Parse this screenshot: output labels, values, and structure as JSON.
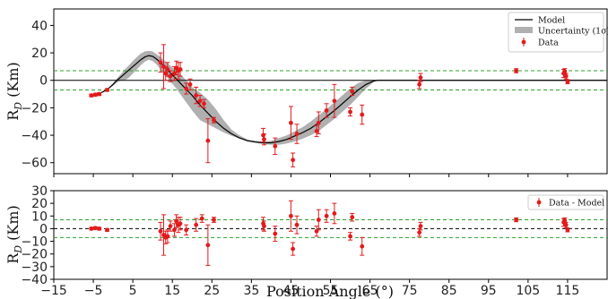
{
  "chart_data": [
    {
      "type": "line",
      "panel": "top",
      "ylabel": "R",
      "ylabel_sub": "D",
      "ylabel_unit": " (Km)",
      "xlim": [
        -15,
        125
      ],
      "ylim": [
        -68,
        52
      ],
      "yticks": [
        40,
        20,
        0,
        -20,
        -40,
        -60
      ],
      "reference_lines": [
        {
          "y": 0,
          "style": "solid",
          "color": "#000000"
        },
        {
          "y": 7,
          "style": "dashed",
          "color": "#2ca02c"
        },
        {
          "y": -7,
          "style": "dashed",
          "color": "#2ca02c"
        }
      ],
      "legend": {
        "placement": "top-right",
        "entries": [
          {
            "label": "Model",
            "kind": "line",
            "color": "#000000"
          },
          {
            "label": "Uncertainty (1σ)",
            "kind": "band",
            "color": "#b0b0b0"
          },
          {
            "label": "Data",
            "kind": "errorbar",
            "color": "#e31a1c"
          }
        ]
      },
      "model": {
        "x": [
          -6,
          -5,
          -4,
          -3,
          -2,
          -1,
          0,
          1,
          2,
          3,
          4,
          5,
          6,
          7,
          8,
          9,
          10,
          11,
          12,
          13,
          14,
          15,
          16,
          17,
          18,
          19,
          20,
          22,
          24,
          26,
          28,
          30,
          32,
          34,
          36,
          38,
          40,
          42,
          44,
          46,
          48,
          50,
          52,
          54,
          56,
          58,
          60,
          62,
          64,
          66,
          67,
          68,
          70,
          125
        ],
        "y": [
          -11,
          -10.8,
          -10,
          -9,
          -7.5,
          -5.5,
          -3,
          0,
          2.5,
          5,
          7.5,
          10,
          12.5,
          15,
          17,
          18,
          17.5,
          15.5,
          13,
          10,
          7,
          4,
          1,
          -2,
          -5,
          -8,
          -11,
          -18,
          -24,
          -30,
          -35,
          -39,
          -42,
          -44,
          -45,
          -45.5,
          -45.5,
          -44.5,
          -43,
          -40.5,
          -38,
          -35,
          -31,
          -26.5,
          -22,
          -17,
          -12,
          -7,
          -3,
          -0.5,
          0,
          0,
          0,
          0
        ],
        "band_lower": [
          -12,
          -11.5,
          -10.5,
          -9.5,
          -8,
          -6,
          -4,
          -1.5,
          0,
          0,
          2,
          5,
          8,
          11,
          13.5,
          15,
          14,
          11.5,
          8,
          4.5,
          1,
          -2.5,
          -6,
          -10,
          -14,
          -18,
          -22,
          -29,
          -32,
          -35,
          -38,
          -40.5,
          -42.5,
          -44.5,
          -45.5,
          -46.5,
          -47,
          -47,
          -46,
          -44.5,
          -42.5,
          -40,
          -37,
          -32.5,
          -28,
          -23,
          -18,
          -12,
          -6,
          -1,
          0,
          0,
          0,
          0
        ],
        "band_upper": [
          -10,
          -10,
          -9.5,
          -8.5,
          -7,
          -5,
          -2,
          1.5,
          4.5,
          8,
          11,
          14,
          17,
          19.5,
          21,
          21.5,
          21,
          19,
          17,
          14.5,
          12,
          9.5,
          7,
          4.5,
          1.5,
          -1.5,
          -5,
          -9,
          -14,
          -21,
          -29,
          -36,
          -40,
          -43,
          -44,
          -44.5,
          -44,
          -42,
          -40,
          -37,
          -34,
          -30,
          -25.5,
          -21,
          -16,
          -11,
          -6,
          -2,
          0,
          0,
          0,
          0,
          0,
          0
        ]
      },
      "data_points": [
        {
          "x": -5.5,
          "y": -11,
          "err": 1
        },
        {
          "x": -4.5,
          "y": -10.5,
          "err": 1
        },
        {
          "x": -3.5,
          "y": -10,
          "err": 1
        },
        {
          "x": -1.5,
          "y": -7,
          "err": 1
        },
        {
          "x": 12,
          "y": 13,
          "err": 7
        },
        {
          "x": 12.8,
          "y": 10,
          "err": 16
        },
        {
          "x": 13.3,
          "y": 5,
          "err": 5
        },
        {
          "x": 13.8,
          "y": 8,
          "err": 5
        },
        {
          "x": 14.5,
          "y": 3,
          "err": 4
        },
        {
          "x": 15.5,
          "y": 5,
          "err": 5
        },
        {
          "x": 16,
          "y": 9,
          "err": 5
        },
        {
          "x": 16.5,
          "y": 7,
          "err": 6
        },
        {
          "x": 17,
          "y": 8,
          "err": 5
        },
        {
          "x": 18.5,
          "y": -6,
          "err": 4
        },
        {
          "x": 19.5,
          "y": -3,
          "err": 4
        },
        {
          "x": 21,
          "y": -11,
          "err": 6
        },
        {
          "x": 22,
          "y": -15,
          "err": 4
        },
        {
          "x": 23,
          "y": -17,
          "err": 3
        },
        {
          "x": 24,
          "y": -44,
          "err": 16
        },
        {
          "x": 25.5,
          "y": -29,
          "err": 2
        },
        {
          "x": 38,
          "y": -40,
          "err": 5
        },
        {
          "x": 38.2,
          "y": -43,
          "err": 4
        },
        {
          "x": 41,
          "y": -48,
          "err": 6
        },
        {
          "x": 45,
          "y": -31,
          "err": 12
        },
        {
          "x": 45.5,
          "y": -58,
          "err": 5
        },
        {
          "x": 46.5,
          "y": -39,
          "err": 7
        },
        {
          "x": 51.5,
          "y": -37,
          "err": 4
        },
        {
          "x": 52,
          "y": -31,
          "err": 8
        },
        {
          "x": 54,
          "y": -22,
          "err": 5
        },
        {
          "x": 56,
          "y": -15,
          "err": 12
        },
        {
          "x": 60,
          "y": -23,
          "err": 3
        },
        {
          "x": 60.5,
          "y": -8,
          "err": 3
        },
        {
          "x": 63,
          "y": -25,
          "err": 7
        },
        {
          "x": 77.5,
          "y": -3,
          "err": 3
        },
        {
          "x": 77.8,
          "y": 2,
          "err": 3
        },
        {
          "x": 102,
          "y": 7,
          "err": 1.5
        },
        {
          "x": 114,
          "y": 5,
          "err": 3
        },
        {
          "x": 114.3,
          "y": 6.5,
          "err": 2
        },
        {
          "x": 114.6,
          "y": 3,
          "err": 2
        },
        {
          "x": 115,
          "y": -1,
          "err": 1.5
        }
      ]
    },
    {
      "type": "scatter",
      "panel": "bottom",
      "xlabel": "Position Angle (°)",
      "ylabel": "R",
      "ylabel_sub": "D",
      "ylabel_unit": " (Km)",
      "xlim": [
        -15,
        125
      ],
      "ylim": [
        -40,
        30
      ],
      "yticks": [
        30,
        20,
        10,
        0,
        -10,
        -20,
        -30,
        -40
      ],
      "ytick_labels": [
        "30",
        "20",
        "10",
        "0",
        "−10",
        "−20",
        "−30",
        "−40"
      ],
      "xticks": [
        -15,
        -5,
        5,
        15,
        25,
        35,
        45,
        55,
        65,
        75,
        85,
        95,
        105,
        115
      ],
      "xtick_labels": [
        "−15",
        "−5",
        "5",
        "15",
        "25",
        "35",
        "45",
        "55",
        "65",
        "75",
        "85",
        "95",
        "105",
        "115"
      ],
      "reference_lines": [
        {
          "y": 0,
          "style": "dashed",
          "color": "#000000"
        },
        {
          "y": 7,
          "style": "dashed",
          "color": "#2ca02c"
        },
        {
          "y": -7,
          "style": "dashed",
          "color": "#2ca02c"
        }
      ],
      "legend": {
        "placement": "top-right",
        "entries": [
          {
            "label": "Data - Model",
            "kind": "errorbar",
            "color": "#e31a1c"
          }
        ]
      },
      "data_points": [
        {
          "x": -5.5,
          "y": 0,
          "err": 1
        },
        {
          "x": -4.5,
          "y": 0.5,
          "err": 1
        },
        {
          "x": -3.5,
          "y": 0,
          "err": 1
        },
        {
          "x": -1.5,
          "y": -1,
          "err": 1
        },
        {
          "x": 12,
          "y": -2,
          "err": 7
        },
        {
          "x": 12.8,
          "y": -5,
          "err": 16
        },
        {
          "x": 13.3,
          "y": -7,
          "err": 5
        },
        {
          "x": 13.8,
          "y": -6,
          "err": 5
        },
        {
          "x": 14.5,
          "y": 2,
          "err": 4
        },
        {
          "x": 15.5,
          "y": -1,
          "err": 5
        },
        {
          "x": 16,
          "y": 6,
          "err": 5
        },
        {
          "x": 16.5,
          "y": 3,
          "err": 6
        },
        {
          "x": 17,
          "y": 4,
          "err": 5
        },
        {
          "x": 18.5,
          "y": -1,
          "err": 4
        },
        {
          "x": 21,
          "y": 3,
          "err": 5
        },
        {
          "x": 22.5,
          "y": 8,
          "err": 3
        },
        {
          "x": 24,
          "y": -13,
          "err": 16
        },
        {
          "x": 25.5,
          "y": 7,
          "err": 2
        },
        {
          "x": 38,
          "y": 4,
          "err": 5
        },
        {
          "x": 38.2,
          "y": 2,
          "err": 4
        },
        {
          "x": 41,
          "y": -4,
          "err": 6
        },
        {
          "x": 45,
          "y": 10,
          "err": 12
        },
        {
          "x": 45.5,
          "y": -16,
          "err": 5
        },
        {
          "x": 46.5,
          "y": 3,
          "err": 7
        },
        {
          "x": 51.5,
          "y": -2,
          "err": 4
        },
        {
          "x": 52,
          "y": 7,
          "err": 8
        },
        {
          "x": 54,
          "y": 10,
          "err": 5
        },
        {
          "x": 56,
          "y": 12,
          "err": 8
        },
        {
          "x": 60,
          "y": -6,
          "err": 3
        },
        {
          "x": 60.5,
          "y": 9,
          "err": 3
        },
        {
          "x": 63,
          "y": -14,
          "err": 7
        },
        {
          "x": 77.5,
          "y": -3,
          "err": 3
        },
        {
          "x": 77.8,
          "y": 2,
          "err": 3
        },
        {
          "x": 102,
          "y": 7,
          "err": 1.5
        },
        {
          "x": 114,
          "y": 5,
          "err": 3
        },
        {
          "x": 114.3,
          "y": 6.5,
          "err": 2
        },
        {
          "x": 114.6,
          "y": 3,
          "err": 2
        },
        {
          "x": 115,
          "y": -1,
          "err": 1.5
        }
      ]
    }
  ]
}
